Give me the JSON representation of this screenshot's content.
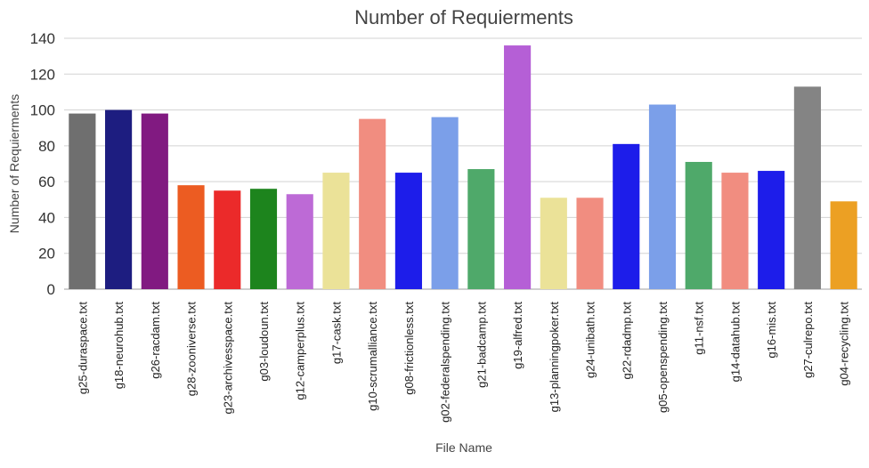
{
  "chart_data": {
    "type": "bar",
    "title": "Number of Requierments",
    "xlabel": "File Name",
    "ylabel": "Number of Requierments",
    "ylim": [
      0,
      140
    ],
    "yticks": [
      0,
      20,
      40,
      60,
      80,
      100,
      120,
      140
    ],
    "grid": "horizontal",
    "categories": [
      "g25-duraspace.txt",
      "g18-neurohub.txt",
      "g26-racdam.txt",
      "g28-zooniverse.txt",
      "g23-archivesspace.txt",
      "g03-loudoun.txt",
      "g12-camperplus.txt",
      "g17-cask.txt",
      "g10-scrumalliance.txt",
      "g08-frictionless.txt",
      "g02-federalspending.txt",
      "g21-badcamp.txt",
      "g19-alfred.txt",
      "g13-planningpoker.txt",
      "g24-unibath.txt",
      "g22-rdadmp.txt",
      "g05-openspending.txt",
      "g11-nsf.txt",
      "g14-datahub.txt",
      "g16-mis.txt",
      "g27-culrepo.txt",
      "g04-recycling.txt"
    ],
    "values": [
      98,
      100,
      98,
      58,
      55,
      56,
      53,
      65,
      95,
      65,
      96,
      67,
      136,
      51,
      51,
      81,
      103,
      71,
      65,
      66,
      113,
      49
    ],
    "colors": [
      "#6f6f6f",
      "#1d1d80",
      "#811a81",
      "#ec5c22",
      "#eb2a2a",
      "#1d841d",
      "#bd6ad6",
      "#ebe298",
      "#f18d80",
      "#1d1dea",
      "#7b9fe9",
      "#4fa96a",
      "#b55fd6",
      "#ebe298",
      "#f18d80",
      "#1d1dea",
      "#7b9fe9",
      "#4fa96a",
      "#f18d80",
      "#1d1dea",
      "#848484",
      "#eca023"
    ]
  }
}
